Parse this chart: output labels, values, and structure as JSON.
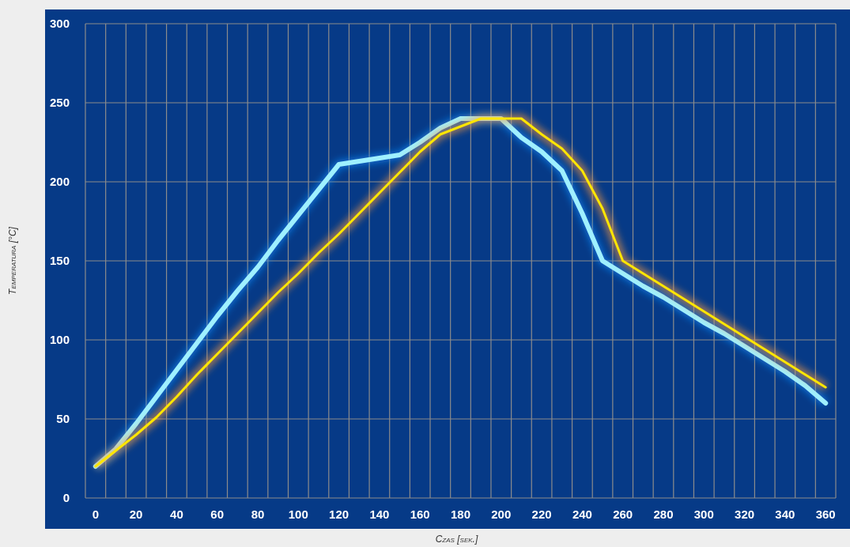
{
  "chart_data": {
    "type": "line",
    "xlabel": "Czas [sek.]",
    "ylabel": "Temperatura [°C]",
    "categories": [
      "0",
      null,
      "20",
      null,
      "40",
      null,
      "60",
      null,
      "80",
      null,
      "100",
      null,
      "120",
      null,
      "140",
      null,
      "160",
      null,
      "180",
      null,
      "200",
      null,
      "220",
      null,
      "240",
      null,
      "260",
      null,
      "280",
      null,
      "300",
      null,
      "320",
      null,
      "340",
      null,
      "360"
    ],
    "ylim": [
      0,
      300
    ],
    "yticks": [
      0,
      50,
      100,
      150,
      200,
      250,
      300
    ],
    "grid": true,
    "series": [
      {
        "color": "#9ff0ff",
        "values": [
          20,
          31,
          47,
          64,
          81,
          98,
          115,
          131,
          146,
          163,
          179,
          195,
          211,
          213,
          215,
          217,
          225,
          234,
          240,
          240,
          240,
          228,
          219,
          207,
          180,
          150,
          142,
          134,
          127,
          119,
          111,
          104,
          96,
          88,
          80,
          71,
          60
        ]
      },
      {
        "color": "#ffe600",
        "values": [
          20,
          30,
          40,
          51,
          64,
          78,
          91,
          104,
          117,
          130,
          142,
          155,
          167,
          180,
          193,
          206,
          219,
          230,
          235,
          240,
          240,
          240,
          230,
          221,
          207,
          183,
          150,
          142,
          134,
          126,
          118,
          110,
          102,
          94,
          86,
          78,
          70
        ]
      }
    ]
  }
}
